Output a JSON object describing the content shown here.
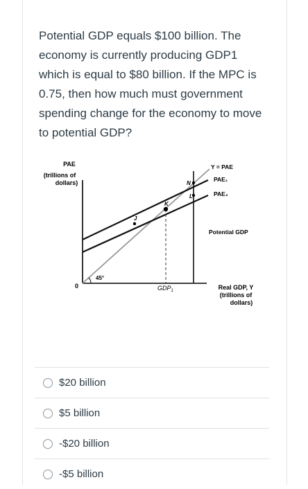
{
  "question": {
    "text": "Potential GDP equals $100 billion. The economy is currently producing GDP1 which is equal to $80 billion. If the MPC is 0.75, then how much must government spending change for the economy to move to potential GDP?"
  },
  "figure": {
    "y_axis_label_line1": "PAE",
    "y_axis_label_line2": "(trillions of",
    "y_axis_label_line3": "dollars)",
    "origin_label": "0",
    "angle_label": "45°",
    "x_tick_label": "GDP",
    "x_tick_subscript": "1",
    "x_axis_label_line1": "Real GDP, Y",
    "x_axis_label_line2": "(trillions of",
    "x_axis_label_line3": "dollars)",
    "line_label_45": "Y = PAE",
    "line_label_pae1": "PAE₁",
    "line_label_pae2": "PAE₂",
    "potential_label": "Potential GDP",
    "point_j": "J",
    "point_k": "K",
    "point_n": "N",
    "point_l": "L"
  },
  "options": [
    {
      "label": "$20 billion"
    },
    {
      "label": "$5 billion"
    },
    {
      "label": "-$20 billion"
    },
    {
      "label": "-$5 billion"
    }
  ]
}
